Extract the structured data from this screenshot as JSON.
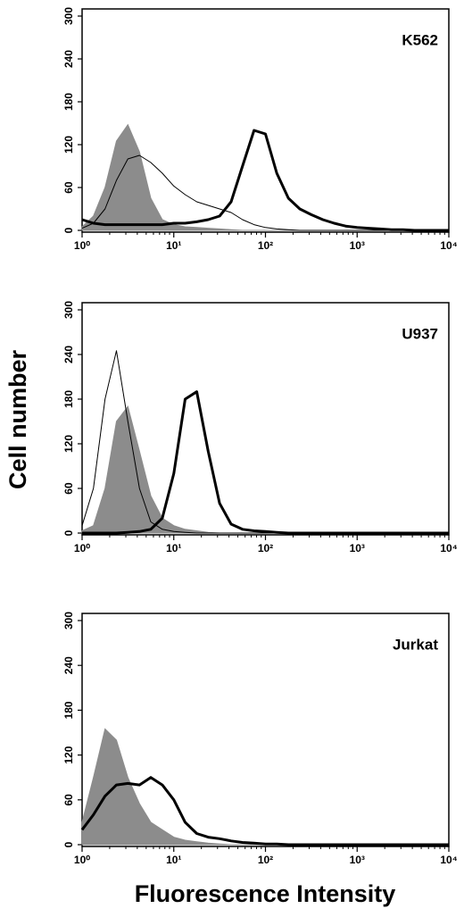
{
  "ylabel": "Cell number",
  "xlabel": "Fluorescence Intensity",
  "chart_data": [
    {
      "type": "line",
      "title": "K562",
      "xscale": "log",
      "xlim": [
        1,
        10000
      ],
      "ylim": [
        0,
        300
      ],
      "xticks": [
        {
          "value": 1,
          "label": "10⁰"
        },
        {
          "value": 10,
          "label": "10¹"
        },
        {
          "value": 100,
          "label": "10²"
        },
        {
          "value": 1000,
          "label": "10³"
        },
        {
          "value": 10000,
          "label": "10⁴"
        }
      ],
      "yticks": [
        0,
        60,
        120,
        180,
        240,
        300
      ],
      "x": [
        1,
        1.33,
        1.78,
        2.37,
        3.16,
        4.22,
        5.62,
        7.5,
        10,
        13.3,
        17.8,
        23.7,
        31.6,
        42.2,
        56.2,
        75,
        100,
        133,
        178,
        237,
        316,
        422,
        562,
        750,
        1000,
        1333,
        1778,
        2371,
        3162,
        4217,
        5623,
        7499,
        10000
      ],
      "series": [
        {
          "color": "#8c8c8c",
          "style": "filled",
          "values": [
            5,
            20,
            60,
            125,
            148,
            110,
            45,
            15,
            8,
            5,
            4,
            3,
            2,
            1,
            0,
            0,
            0,
            0,
            0,
            0,
            0,
            0,
            0,
            0,
            0,
            0,
            0,
            0,
            0,
            0,
            0,
            0,
            0
          ]
        },
        {
          "color": "#000000",
          "style": "thin",
          "values": [
            3,
            10,
            30,
            70,
            100,
            105,
            95,
            80,
            62,
            50,
            40,
            35,
            30,
            25,
            15,
            8,
            4,
            2,
            1,
            0,
            0,
            0,
            0,
            0,
            0,
            0,
            0,
            0,
            0,
            0,
            0,
            0,
            0
          ]
        },
        {
          "color": "#000000",
          "style": "thick",
          "values": [
            15,
            10,
            8,
            8,
            8,
            8,
            8,
            8,
            10,
            10,
            12,
            15,
            20,
            40,
            90,
            140,
            135,
            80,
            45,
            30,
            22,
            15,
            10,
            6,
            4,
            3,
            2,
            1,
            1,
            0,
            0,
            0,
            0
          ]
        }
      ]
    },
    {
      "type": "line",
      "title": "U937",
      "xscale": "log",
      "xlim": [
        1,
        10000
      ],
      "ylim": [
        0,
        300
      ],
      "xticks": [
        {
          "value": 1,
          "label": "10⁰"
        },
        {
          "value": 10,
          "label": "10¹"
        },
        {
          "value": 100,
          "label": "10²"
        },
        {
          "value": 1000,
          "label": "10³"
        },
        {
          "value": 10000,
          "label": "10⁴"
        }
      ],
      "yticks": [
        0,
        60,
        120,
        180,
        240,
        300
      ],
      "x": [
        1,
        1.33,
        1.78,
        2.37,
        3.16,
        4.22,
        5.62,
        7.5,
        10,
        13.3,
        17.8,
        23.7,
        31.6,
        42.2,
        56.2,
        75,
        100,
        133,
        178,
        237,
        316,
        422,
        562,
        750,
        1000,
        1333,
        1778,
        2371,
        3162,
        4217,
        5623,
        7499,
        10000
      ],
      "series": [
        {
          "color": "#8c8c8c",
          "style": "filled",
          "values": [
            3,
            10,
            60,
            150,
            170,
            110,
            50,
            20,
            10,
            5,
            3,
            1,
            0,
            0,
            0,
            0,
            0,
            0,
            0,
            0,
            0,
            0,
            0,
            0,
            0,
            0,
            0,
            0,
            0,
            0,
            0,
            0,
            0
          ]
        },
        {
          "color": "#000000",
          "style": "thin",
          "values": [
            10,
            60,
            180,
            245,
            150,
            60,
            15,
            5,
            2,
            1,
            0,
            0,
            0,
            0,
            0,
            0,
            0,
            0,
            0,
            0,
            0,
            0,
            0,
            0,
            0,
            0,
            0,
            0,
            0,
            0,
            0,
            0,
            0
          ]
        },
        {
          "color": "#000000",
          "style": "thick",
          "values": [
            0,
            0,
            0,
            0,
            1,
            2,
            5,
            20,
            80,
            180,
            190,
            110,
            40,
            12,
            5,
            3,
            2,
            1,
            0,
            0,
            0,
            0,
            0,
            0,
            0,
            0,
            0,
            0,
            0,
            0,
            0,
            0,
            0
          ]
        }
      ]
    },
    {
      "type": "line",
      "title": "Jurkat",
      "xscale": "log",
      "xlim": [
        1,
        10000
      ],
      "ylim": [
        0,
        300
      ],
      "xticks": [
        {
          "value": 1,
          "label": "10⁰"
        },
        {
          "value": 10,
          "label": "10¹"
        },
        {
          "value": 100,
          "label": "10²"
        },
        {
          "value": 1000,
          "label": "10³"
        },
        {
          "value": 10000,
          "label": "10⁴"
        }
      ],
      "yticks": [
        0,
        60,
        120,
        180,
        240,
        300
      ],
      "x": [
        1,
        1.33,
        1.78,
        2.37,
        3.16,
        4.22,
        5.62,
        7.5,
        10,
        13.3,
        17.8,
        23.7,
        31.6,
        42.2,
        56.2,
        75,
        100,
        133,
        178,
        237,
        316,
        422,
        562,
        750,
        1000,
        1333,
        1778,
        2371,
        3162,
        4217,
        5623,
        7499,
        10000
      ],
      "series": [
        {
          "color": "#8c8c8c",
          "style": "filled",
          "values": [
            30,
            90,
            155,
            140,
            90,
            55,
            30,
            20,
            10,
            6,
            4,
            2,
            1,
            0,
            0,
            0,
            0,
            0,
            0,
            0,
            0,
            0,
            0,
            0,
            0,
            0,
            0,
            0,
            0,
            0,
            0,
            0,
            0
          ]
        },
        {
          "color": "#000000",
          "style": "thick",
          "values": [
            20,
            40,
            65,
            80,
            82,
            80,
            90,
            80,
            60,
            30,
            15,
            10,
            8,
            5,
            3,
            2,
            1,
            1,
            0,
            0,
            0,
            0,
            0,
            0,
            0,
            0,
            0,
            0,
            0,
            0,
            0,
            0,
            0
          ]
        }
      ]
    }
  ]
}
